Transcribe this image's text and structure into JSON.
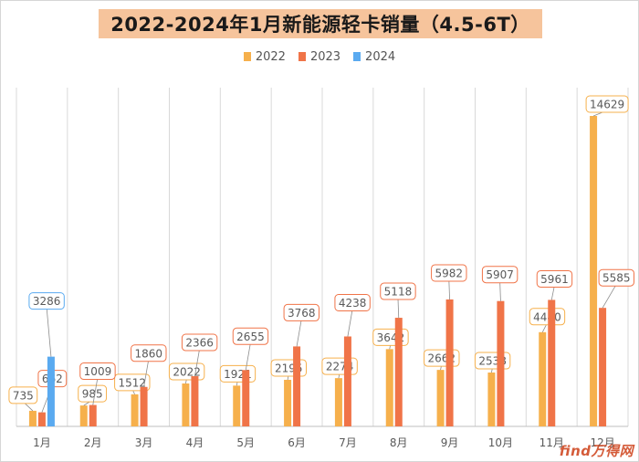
{
  "colors": {
    "s2022": "#f6b04c",
    "s2023": "#f07448",
    "s2024": "#5aaaf0",
    "title_bg": "#f6c49c"
  },
  "watermark": "ﬁnd万得网",
  "chart_data": {
    "type": "bar",
    "title": "2022-2024年1月新能源轻卡销量（4.5-6T）",
    "legend_position": "top-center",
    "grid": "vertical",
    "categories": [
      "1月",
      "2月",
      "3月",
      "4月",
      "5月",
      "6月",
      "7月",
      "8月",
      "9月",
      "10月",
      "11月",
      "12月"
    ],
    "series": [
      {
        "name": "2022",
        "color": "#f6b04c",
        "values": [
          735,
          985,
          1512,
          2022,
          1921,
          2195,
          2274,
          3642,
          2662,
          2538,
          4440,
          14629
        ]
      },
      {
        "name": "2023",
        "color": "#f07448",
        "values": [
          662,
          1009,
          1860,
          2366,
          2655,
          3768,
          4238,
          5118,
          5982,
          5907,
          5961,
          5585
        ]
      },
      {
        "name": "2024",
        "color": "#5aaaf0",
        "values": [
          3286,
          null,
          null,
          null,
          null,
          null,
          null,
          null,
          null,
          null,
          null,
          null
        ]
      }
    ],
    "ylim": [
      0,
      15000
    ]
  }
}
